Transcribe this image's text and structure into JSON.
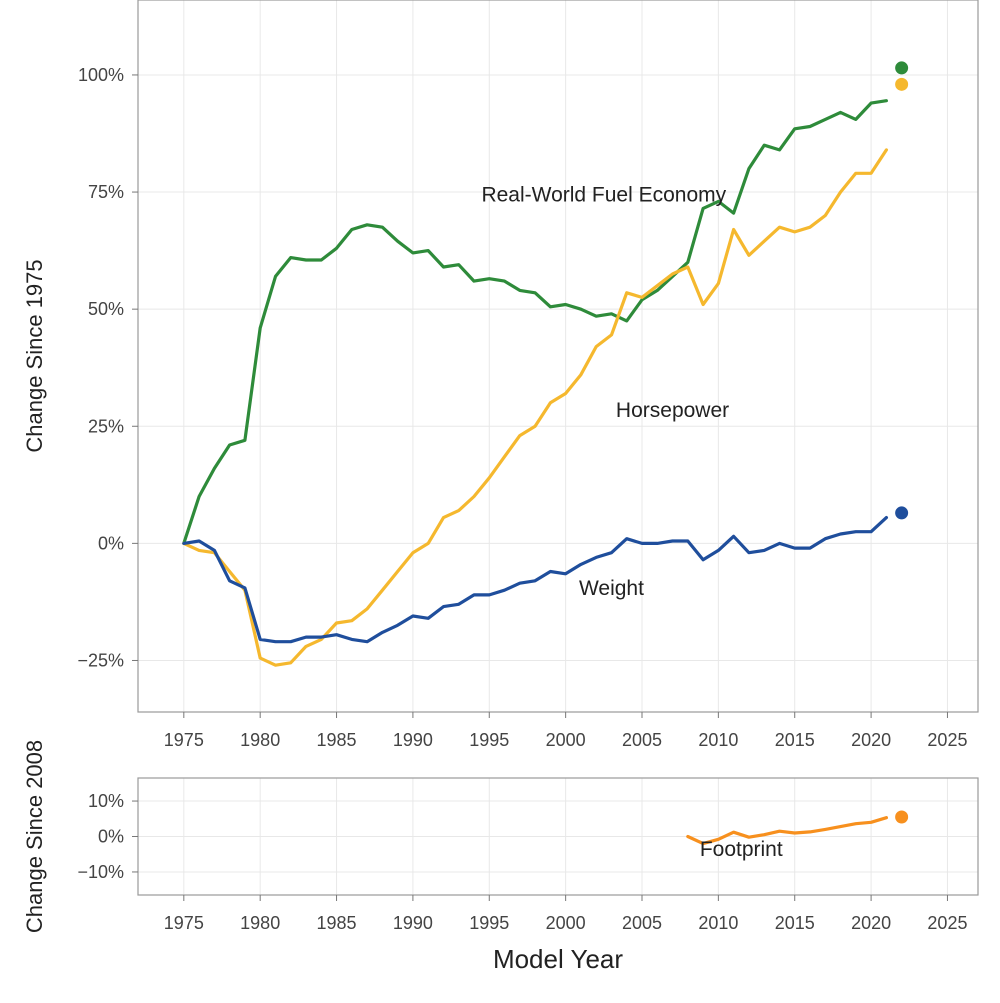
{
  "chart_data": [
    {
      "type": "line",
      "ylabel": "Change Since 1975",
      "xlim": [
        1972,
        2027
      ],
      "ylim": [
        -36,
        116
      ],
      "x_ticks": [
        1975,
        1980,
        1985,
        1990,
        1995,
        2000,
        2005,
        2010,
        2015,
        2020,
        2025
      ],
      "y_ticks": [
        100,
        75,
        50,
        25,
        0,
        -25
      ],
      "y_tick_labels": [
        "100%",
        "75%",
        "50%",
        "25%",
        "0%",
        "−25%"
      ],
      "series": [
        {
          "name": "Real-World Fuel Economy",
          "color": "#2e8b3a",
          "x": [
            1975,
            1976,
            1977,
            1978,
            1979,
            1980,
            1981,
            1982,
            1983,
            1984,
            1985,
            1986,
            1987,
            1988,
            1989,
            1990,
            1991,
            1992,
            1993,
            1994,
            1995,
            1996,
            1997,
            1998,
            1999,
            2000,
            2001,
            2002,
            2003,
            2004,
            2005,
            2006,
            2007,
            2008,
            2009,
            2010,
            2011,
            2012,
            2013,
            2014,
            2015,
            2016,
            2017,
            2018,
            2019,
            2020,
            2021
          ],
          "values": [
            0,
            10,
            16,
            21,
            22,
            46,
            57,
            61,
            60.5,
            60.5,
            63,
            67,
            68,
            67.5,
            64.5,
            62,
            62.5,
            59,
            59.5,
            56,
            56.5,
            56,
            54,
            53.5,
            50.5,
            51,
            50,
            48.5,
            49,
            47.5,
            52,
            54,
            57,
            60,
            71.5,
            73,
            70.5,
            80,
            85,
            84,
            88.5,
            89,
            90.5,
            92,
            90.5,
            94,
            94.5
          ],
          "projection": {
            "x": 2022,
            "value": 101.5
          }
        },
        {
          "name": "Horsepower",
          "color": "#f5b82e",
          "x": [
            1975,
            1976,
            1977,
            1978,
            1979,
            1980,
            1981,
            1982,
            1983,
            1984,
            1985,
            1986,
            1987,
            1988,
            1989,
            1990,
            1991,
            1992,
            1993,
            1994,
            1995,
            1996,
            1997,
            1998,
            1999,
            2000,
            2001,
            2002,
            2003,
            2004,
            2005,
            2006,
            2007,
            2008,
            2009,
            2010,
            2011,
            2012,
            2013,
            2014,
            2015,
            2016,
            2017,
            2018,
            2019,
            2020,
            2021
          ],
          "values": [
            0,
            -1.5,
            -2,
            -6,
            -10,
            -24.5,
            -26,
            -25.5,
            -22,
            -20.5,
            -17,
            -16.5,
            -14,
            -10,
            -6,
            -2,
            0,
            5.5,
            7,
            10,
            14,
            18.5,
            23,
            25,
            30,
            32,
            36,
            42,
            44.5,
            53.5,
            52.5,
            55,
            57.5,
            59,
            51,
            55.5,
            67,
            61.5,
            64.5,
            67.5,
            66.5,
            67.5,
            70,
            75,
            79,
            79,
            84
          ],
          "projection": {
            "x": 2022,
            "value": 98
          }
        },
        {
          "name": "Weight",
          "color": "#1f4e9c",
          "x": [
            1975,
            1976,
            1977,
            1978,
            1979,
            1980,
            1981,
            1982,
            1983,
            1984,
            1985,
            1986,
            1987,
            1988,
            1989,
            1990,
            1991,
            1992,
            1993,
            1994,
            1995,
            1996,
            1997,
            1998,
            1999,
            2000,
            2001,
            2002,
            2003,
            2004,
            2005,
            2006,
            2007,
            2008,
            2009,
            2010,
            2011,
            2012,
            2013,
            2014,
            2015,
            2016,
            2017,
            2018,
            2019,
            2020,
            2021
          ],
          "values": [
            0,
            0.5,
            -1.5,
            -8,
            -9.5,
            -20.5,
            -21,
            -21,
            -20,
            -20,
            -19.5,
            -20.5,
            -21,
            -19,
            -17.5,
            -15.5,
            -16,
            -13.5,
            -13,
            -11,
            -11,
            -10,
            -8.5,
            -8,
            -6,
            -6.5,
            -4.5,
            -3,
            -2,
            1,
            0,
            0,
            0.5,
            0.5,
            -3.5,
            -1.5,
            1.5,
            -2,
            -1.5,
            0,
            -1,
            -1,
            1,
            2,
            2.5,
            2.5,
            5.5
          ],
          "projection": {
            "x": 2022,
            "value": 6.5
          }
        }
      ],
      "labels": [
        {
          "text": "Real-World Fuel Economy",
          "x": 2002.5,
          "y": 73
        },
        {
          "text": "Horsepower",
          "x": 2007,
          "y": 27
        },
        {
          "text": "Weight",
          "x": 2003,
          "y": -11
        }
      ]
    },
    {
      "type": "line",
      "ylabel": "Change Since 2008",
      "xlabel": "Model Year",
      "xlim": [
        1972,
        2027
      ],
      "ylim": [
        -16.5,
        16.5
      ],
      "x_ticks": [
        1975,
        1980,
        1985,
        1990,
        1995,
        2000,
        2005,
        2010,
        2015,
        2020,
        2025
      ],
      "y_ticks": [
        10,
        0,
        -10
      ],
      "y_tick_labels": [
        "10%",
        "0%",
        "−10%"
      ],
      "series": [
        {
          "name": "Footprint",
          "color": "#f7901e",
          "x": [
            2008,
            2009,
            2010,
            2011,
            2012,
            2013,
            2014,
            2015,
            2016,
            2017,
            2018,
            2019,
            2020,
            2021
          ],
          "values": [
            0,
            -2,
            -0.8,
            1.2,
            -0.2,
            0.5,
            1.5,
            1.0,
            1.3,
            2.0,
            2.8,
            3.6,
            4.0,
            5.3
          ],
          "projection": {
            "x": 2022,
            "value": 5.5
          }
        }
      ],
      "labels": [
        {
          "text": "Footprint",
          "x": 2011.5,
          "y": -5.5
        }
      ]
    }
  ]
}
